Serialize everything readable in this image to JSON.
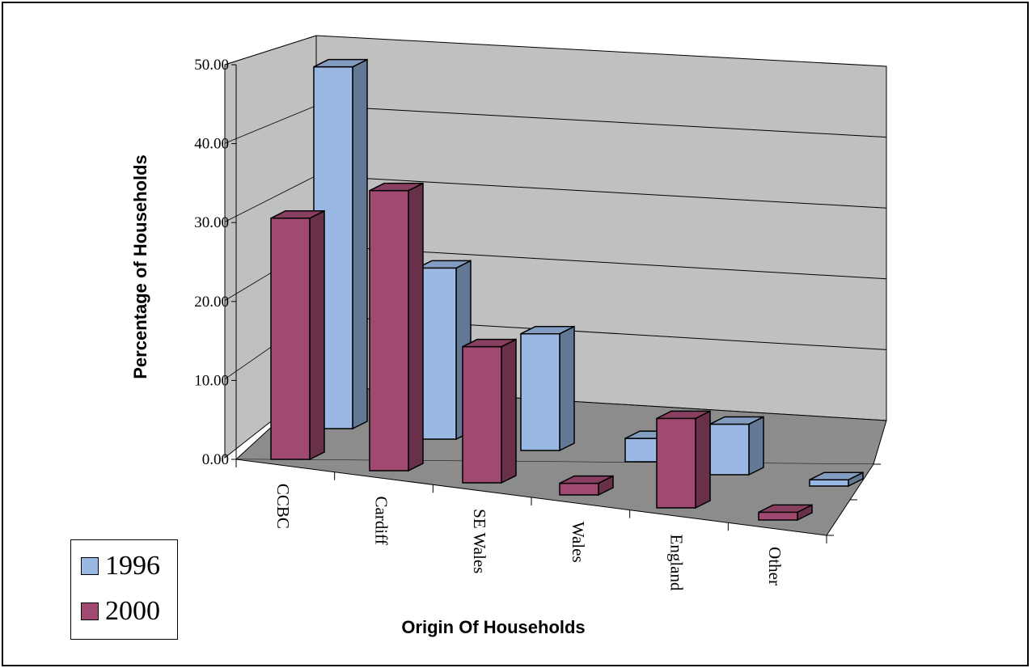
{
  "chart_data": {
    "type": "bar",
    "style": "3d-clustered",
    "categories": [
      "CCBC",
      "Cardiff",
      "SE Wales",
      "Wales",
      "England",
      "Other"
    ],
    "series": [
      {
        "name": "1996",
        "values": [
          46.5,
          22.0,
          15.0,
          3.0,
          6.5,
          0.8
        ],
        "color": "#99b8e4"
      },
      {
        "name": "2000",
        "values": [
          31.0,
          36.0,
          17.5,
          1.5,
          11.5,
          1.0
        ],
        "color": "#a14a71"
      }
    ],
    "xlabel": "Origin Of Households",
    "ylabel": "Percentage  of  Households",
    "ylim": [
      0,
      50
    ],
    "yticks": [
      "0.00",
      "10.00",
      "20.00",
      "30.00",
      "40.00",
      "50.00"
    ],
    "grid": true,
    "legend_position": "bottom-left"
  }
}
